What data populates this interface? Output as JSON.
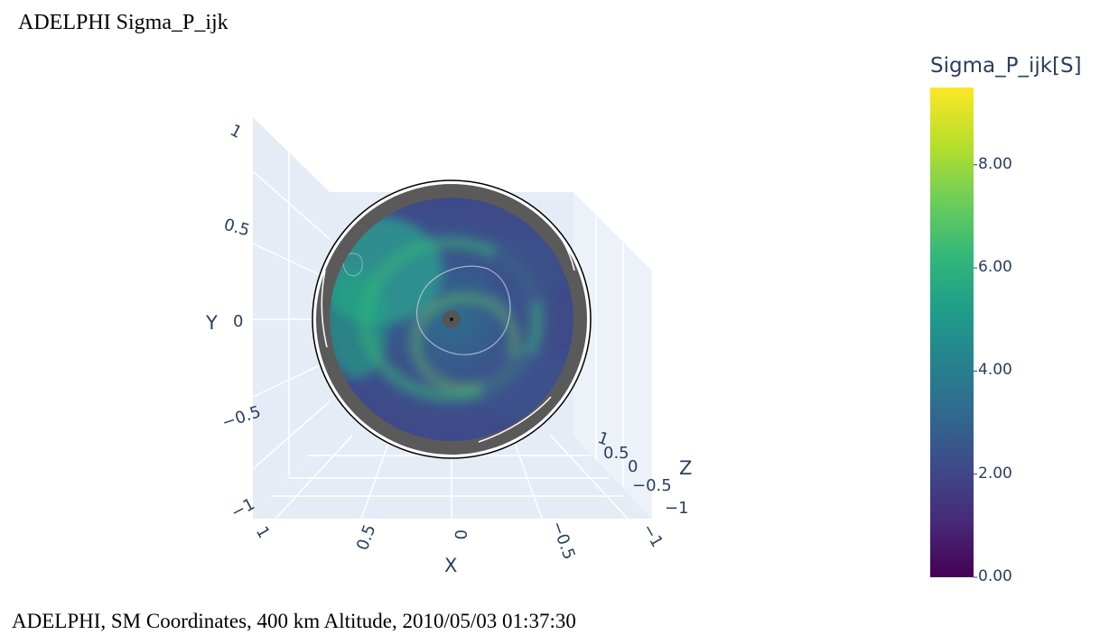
{
  "title": "ADELPHI Sigma_P_ijk",
  "footer": "ADELPHI,  SM Coordinates,  400 km Altitude,  2010/05/03 01:37:30",
  "chart_data": {
    "type": "surface",
    "colorscale": "Viridis",
    "colorbar": {
      "title": "Sigma_P_ijk[S]",
      "range": [
        0,
        9.5
      ],
      "ticks": [
        {
          "value": 0,
          "label": "0.00"
        },
        {
          "value": 2,
          "label": "2.00"
        },
        {
          "value": 4,
          "label": "4.00"
        },
        {
          "value": 6,
          "label": "6.00"
        },
        {
          "value": 8,
          "label": "8.00"
        }
      ]
    },
    "axes": {
      "x": {
        "title": "X",
        "range": [
          -1,
          1
        ],
        "ticks": [
          {
            "value": 1,
            "label": "1"
          },
          {
            "value": 0.5,
            "label": "0.5"
          },
          {
            "value": 0,
            "label": "0"
          },
          {
            "value": -0.5,
            "label": "−0.5"
          },
          {
            "value": -1,
            "label": "−1"
          }
        ]
      },
      "y": {
        "title": "Y",
        "range": [
          -1,
          1
        ],
        "ticks": [
          {
            "value": 1,
            "label": "1"
          },
          {
            "value": 0.5,
            "label": "0.5"
          },
          {
            "value": 0,
            "label": "0"
          },
          {
            "value": -0.5,
            "label": "−0.5"
          },
          {
            "value": -1,
            "label": "−1"
          }
        ]
      },
      "z": {
        "title": "Z",
        "range": [
          -1,
          1
        ],
        "ticks": [
          {
            "value": 1,
            "label": "1"
          },
          {
            "value": 0.5,
            "label": "0.5"
          },
          {
            "value": 0,
            "label": "0"
          },
          {
            "value": -0.5,
            "label": "−0.5"
          },
          {
            "value": -1,
            "label": "−1"
          }
        ]
      }
    },
    "grid": true,
    "colors": {
      "background": "#e5ecf6",
      "grid": "#ffffff",
      "text": "#2a3f5f"
    }
  }
}
